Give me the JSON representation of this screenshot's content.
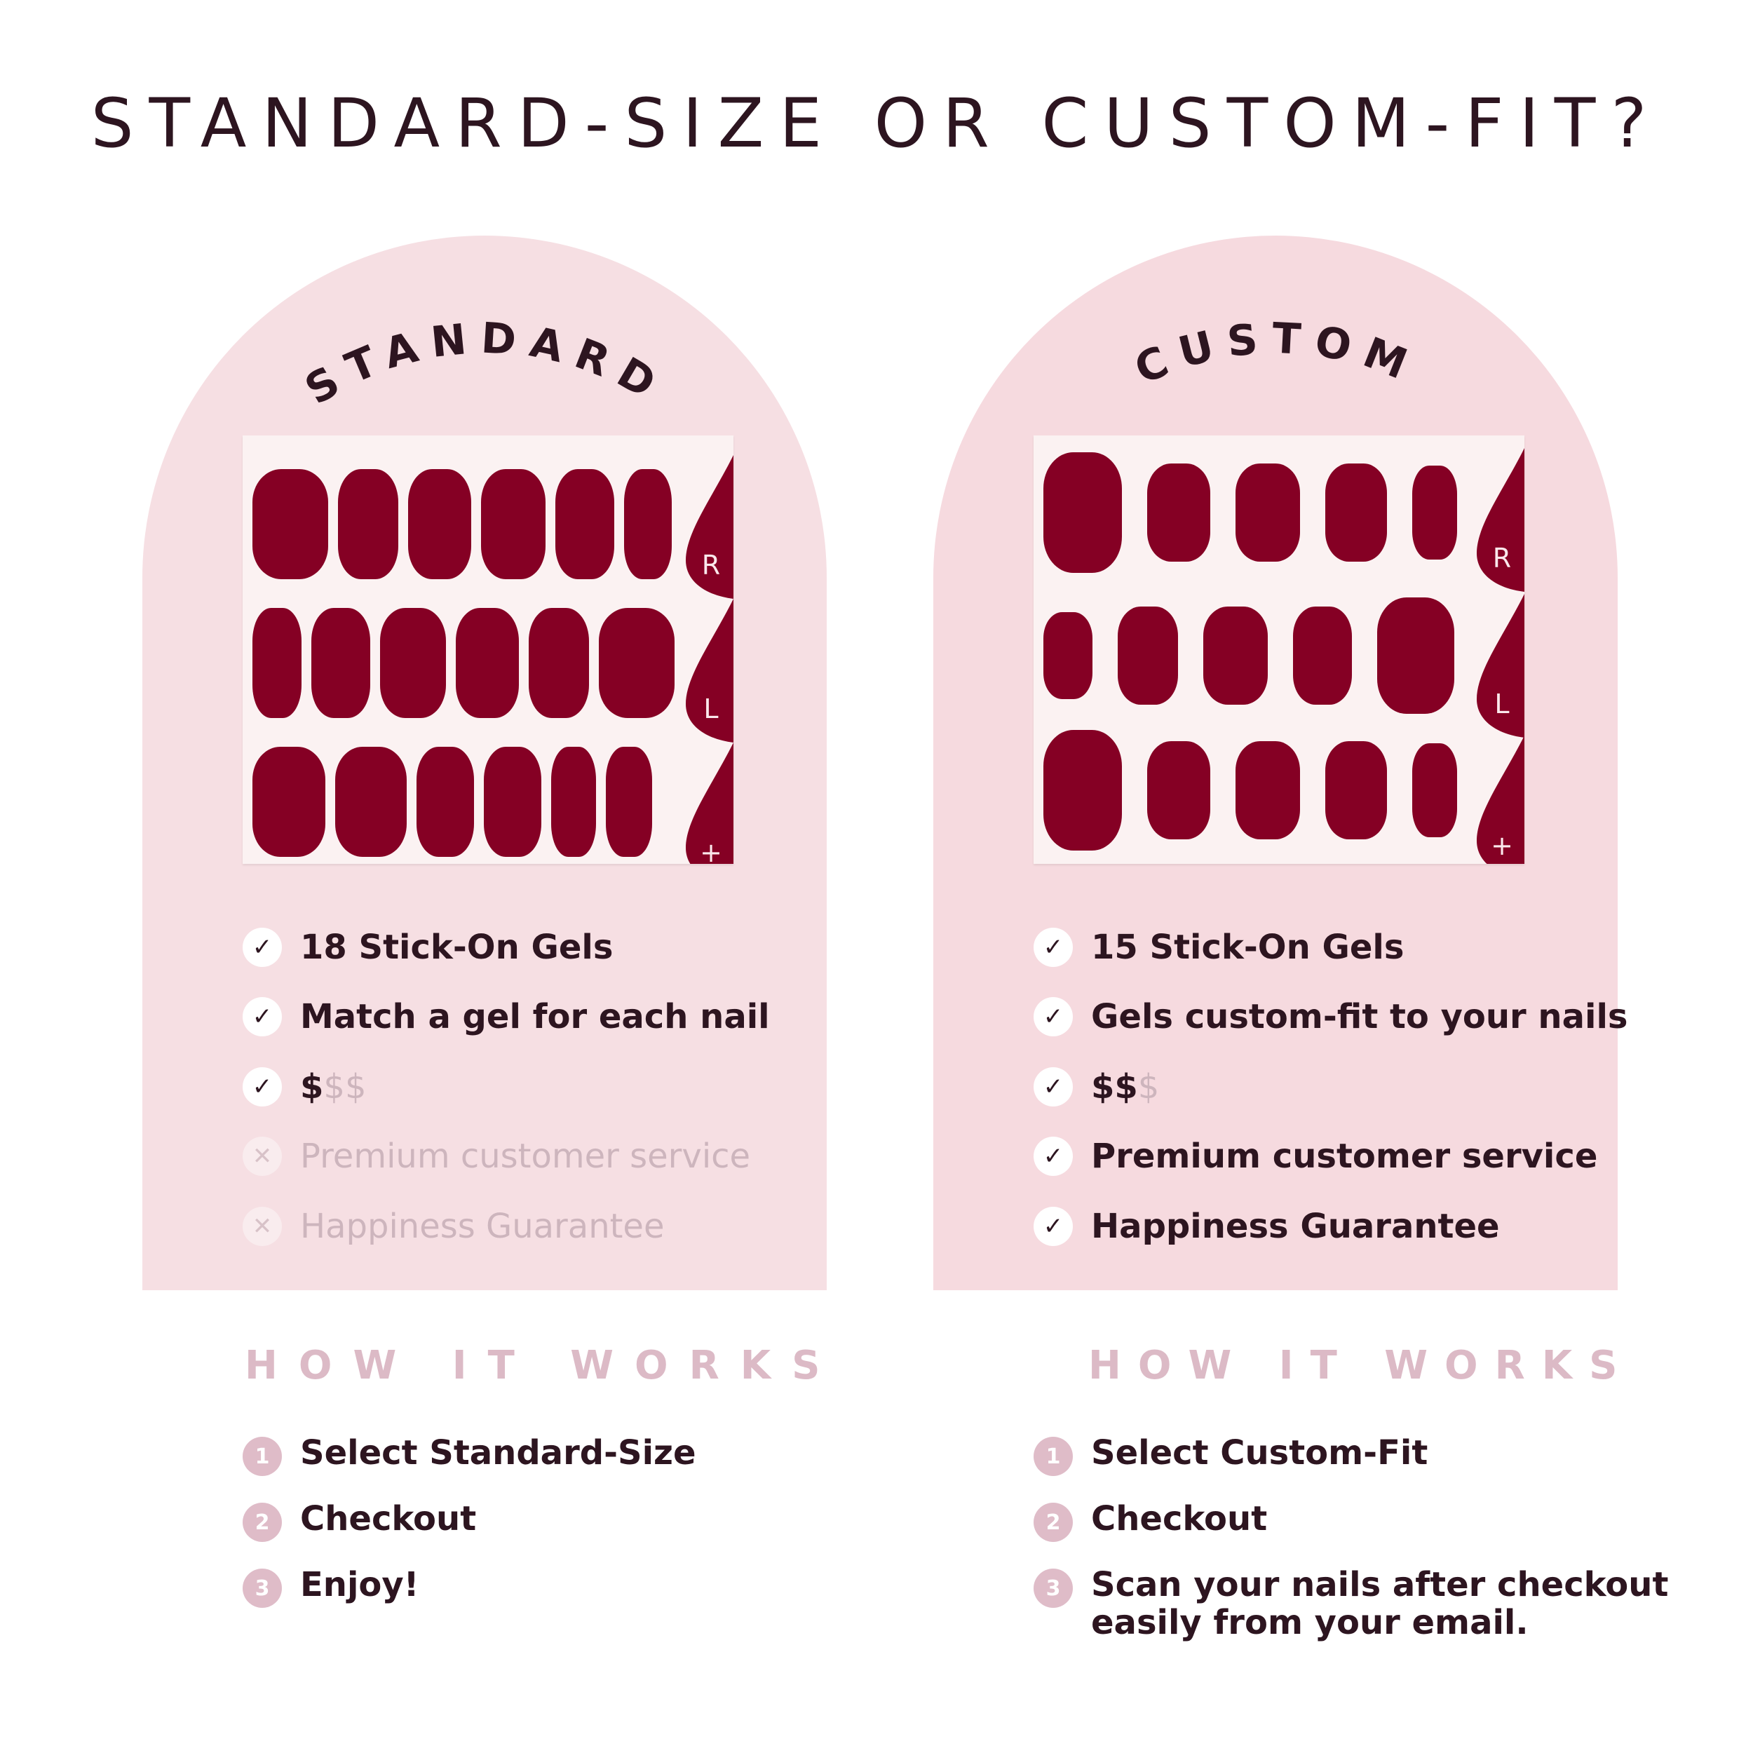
{
  "title": "STANDARD-SIZE OR CUSTOM-FIT?",
  "colors": {
    "arch": "#f6dfe3",
    "nail": "#850024",
    "text": "#2d1520",
    "muted": "#cdb5bd",
    "how_it_works": "#dcbac6"
  },
  "standard": {
    "label": "STANDARD",
    "sheet_tabs": [
      "R",
      "L",
      "+"
    ],
    "features": [
      {
        "icon": "check-icon",
        "text": "18 Stick-On Gels",
        "enabled": true
      },
      {
        "icon": "check-icon",
        "text": "Match a gel for each nail",
        "enabled": true
      },
      {
        "icon": "check-icon",
        "price_active": "$",
        "price_inactive": "$$",
        "enabled": true
      },
      {
        "icon": "x-icon",
        "text": "Premium customer service",
        "enabled": false
      },
      {
        "icon": "x-icon",
        "text": "Happiness Guarantee",
        "enabled": false
      }
    ],
    "how_it_works": "HOW IT WORKS",
    "steps": [
      {
        "num": "1",
        "text": "Select Standard-Size"
      },
      {
        "num": "2",
        "text": "Checkout"
      },
      {
        "num": "3",
        "text": "Enjoy!"
      }
    ]
  },
  "custom": {
    "label": "CUSTOM",
    "sheet_tabs": [
      "R",
      "L",
      "+"
    ],
    "features": [
      {
        "icon": "check-icon",
        "text": "15 Stick-On Gels",
        "enabled": true
      },
      {
        "icon": "check-icon",
        "text": "Gels custom-fit to your nails",
        "enabled": true
      },
      {
        "icon": "check-icon",
        "price_active": "$$",
        "price_inactive": "$",
        "enabled": true
      },
      {
        "icon": "check-icon",
        "text": "Premium customer service",
        "enabled": true
      },
      {
        "icon": "check-icon",
        "text": "Happiness Guarantee",
        "enabled": true
      }
    ],
    "how_it_works": "HOW IT WORKS",
    "steps": [
      {
        "num": "1",
        "text": "Select Custom-Fit"
      },
      {
        "num": "2",
        "text": "Checkout"
      },
      {
        "num": "3",
        "text": "Scan your nails after checkout\neasily from your email."
      }
    ]
  }
}
